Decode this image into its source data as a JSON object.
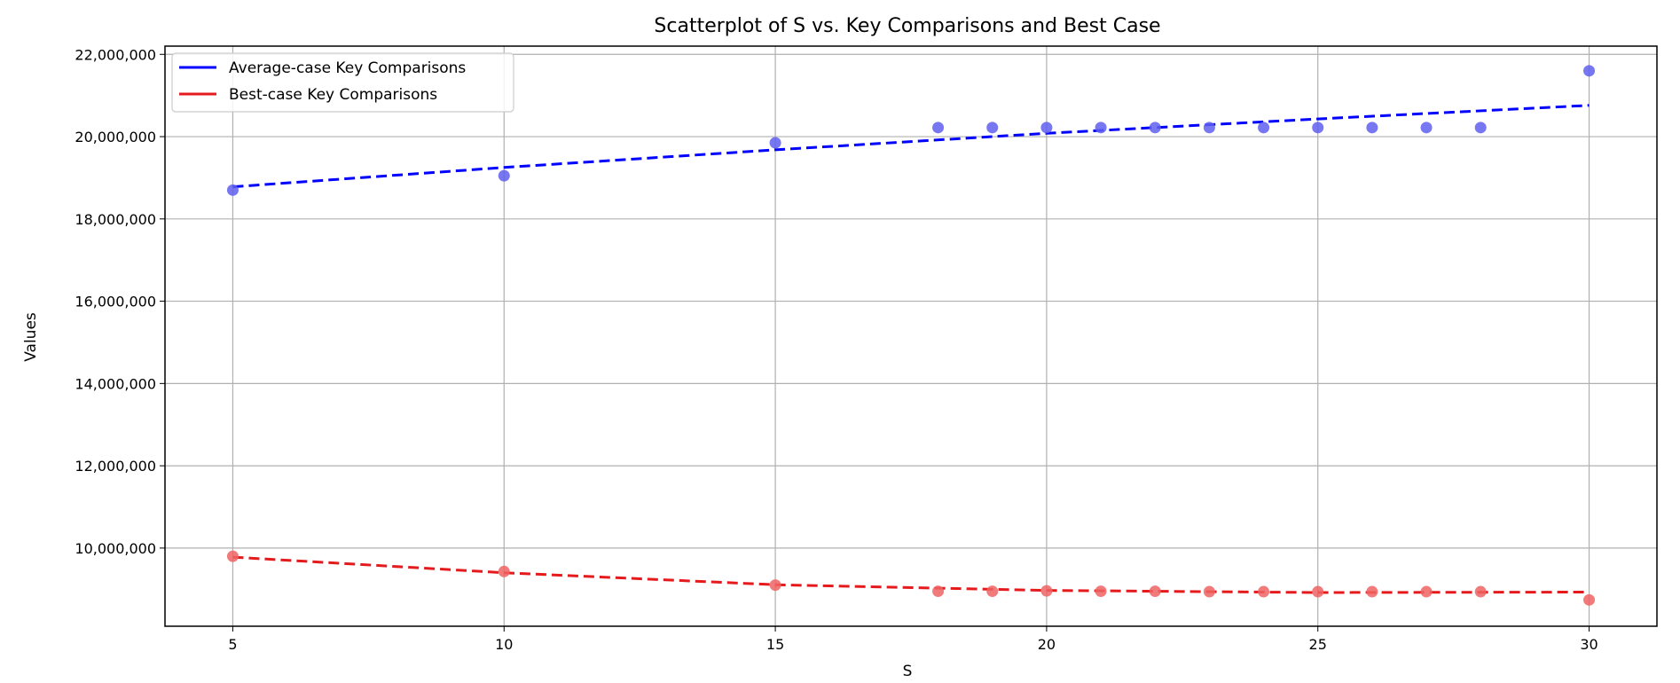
{
  "chart_data": {
    "type": "scatter",
    "title": "Scatterplot of S vs. Key Comparisons and Best Case",
    "xlabel": "S",
    "ylabel": "Values",
    "xlim": [
      3.75,
      31.25
    ],
    "ylim": [
      8100000,
      22200000
    ],
    "xticks": [
      5,
      10,
      15,
      20,
      25,
      30
    ],
    "yticks": [
      10000000,
      12000000,
      14000000,
      16000000,
      18000000,
      20000000,
      22000000
    ],
    "ytick_labels": [
      "10,000,000",
      "12,000,000",
      "14,000,000",
      "16,000,000",
      "18,000,000",
      "20,000,000",
      "22,000,000"
    ],
    "grid": true,
    "legend_position": "top-left",
    "x": [
      5,
      10,
      15,
      18,
      19,
      20,
      21,
      22,
      23,
      24,
      25,
      26,
      27,
      28,
      30
    ],
    "series": [
      {
        "name": "Average-case Key Comparisons",
        "color": "#0000ff",
        "point_color": "#5f5fef",
        "values": [
          18700000,
          19050000,
          19850000,
          20220000,
          20220000,
          20220000,
          20220000,
          20220000,
          20220000,
          20220000,
          20220000,
          20220000,
          20220000,
          20220000,
          21600000
        ],
        "trend": {
          "x": [
            5,
            10,
            15,
            20,
            25,
            30
          ],
          "y": [
            18780000,
            19250000,
            19680000,
            20080000,
            20430000,
            20760000
          ]
        }
      },
      {
        "name": "Best-case Key Comparisons",
        "color": "#e41a1c",
        "point_color": "#ef6464",
        "values": [
          9800000,
          9430000,
          9100000,
          8950000,
          8950000,
          8960000,
          8950000,
          8950000,
          8940000,
          8940000,
          8940000,
          8940000,
          8940000,
          8940000,
          8740000
        ],
        "trend": {
          "x": [
            5,
            10,
            15,
            20,
            25,
            30
          ],
          "y": [
            9780000,
            9400000,
            9110000,
            8970000,
            8920000,
            8930000
          ]
        }
      }
    ]
  }
}
